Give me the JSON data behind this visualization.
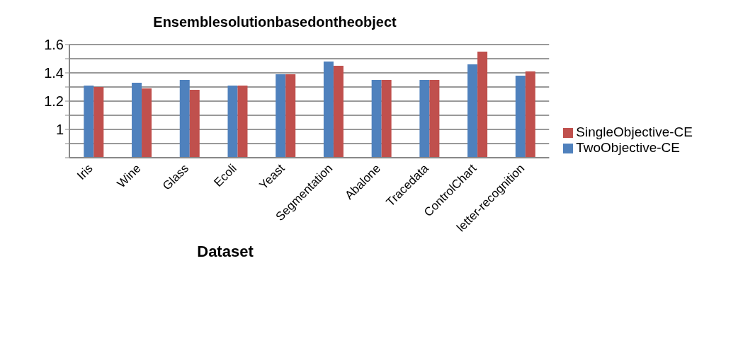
{
  "chart_data": {
    "type": "bar",
    "title": "Ensemblesolutionbasedontheobject",
    "xlabel": "Dataset",
    "categories": [
      "Iris",
      "Wine",
      "Glass",
      "Ecoli",
      "Yeast",
      "Segmentation",
      "Abalone",
      "Tracedata",
      "ControlChart",
      "letter-recognition"
    ],
    "series": [
      {
        "name": "TwoObjective-CE",
        "color": "#4f81bd",
        "values": [
          1.31,
          1.33,
          1.35,
          1.31,
          1.39,
          1.48,
          1.35,
          1.35,
          1.46,
          1.38
        ]
      },
      {
        "name": "SingleObjective-CE",
        "color": "#c0504d",
        "values": [
          1.3,
          1.29,
          1.28,
          1.31,
          1.39,
          1.45,
          1.35,
          1.35,
          1.55,
          1.41
        ]
      }
    ],
    "ylim": [
      0.8,
      1.6
    ],
    "yticks": [
      {
        "value": 0.8,
        "label": null
      },
      {
        "value": 0.9,
        "label": null
      },
      {
        "value": 1.0,
        "label": "1"
      },
      {
        "value": 1.1,
        "label": null
      },
      {
        "value": 1.2,
        "label": "1.2"
      },
      {
        "value": 1.3,
        "label": null
      },
      {
        "value": 1.4,
        "label": "1.4"
      },
      {
        "value": 1.5,
        "label": null
      },
      {
        "value": 1.6,
        "label": "1.6"
      }
    ],
    "grid": "y",
    "legend": "right"
  }
}
